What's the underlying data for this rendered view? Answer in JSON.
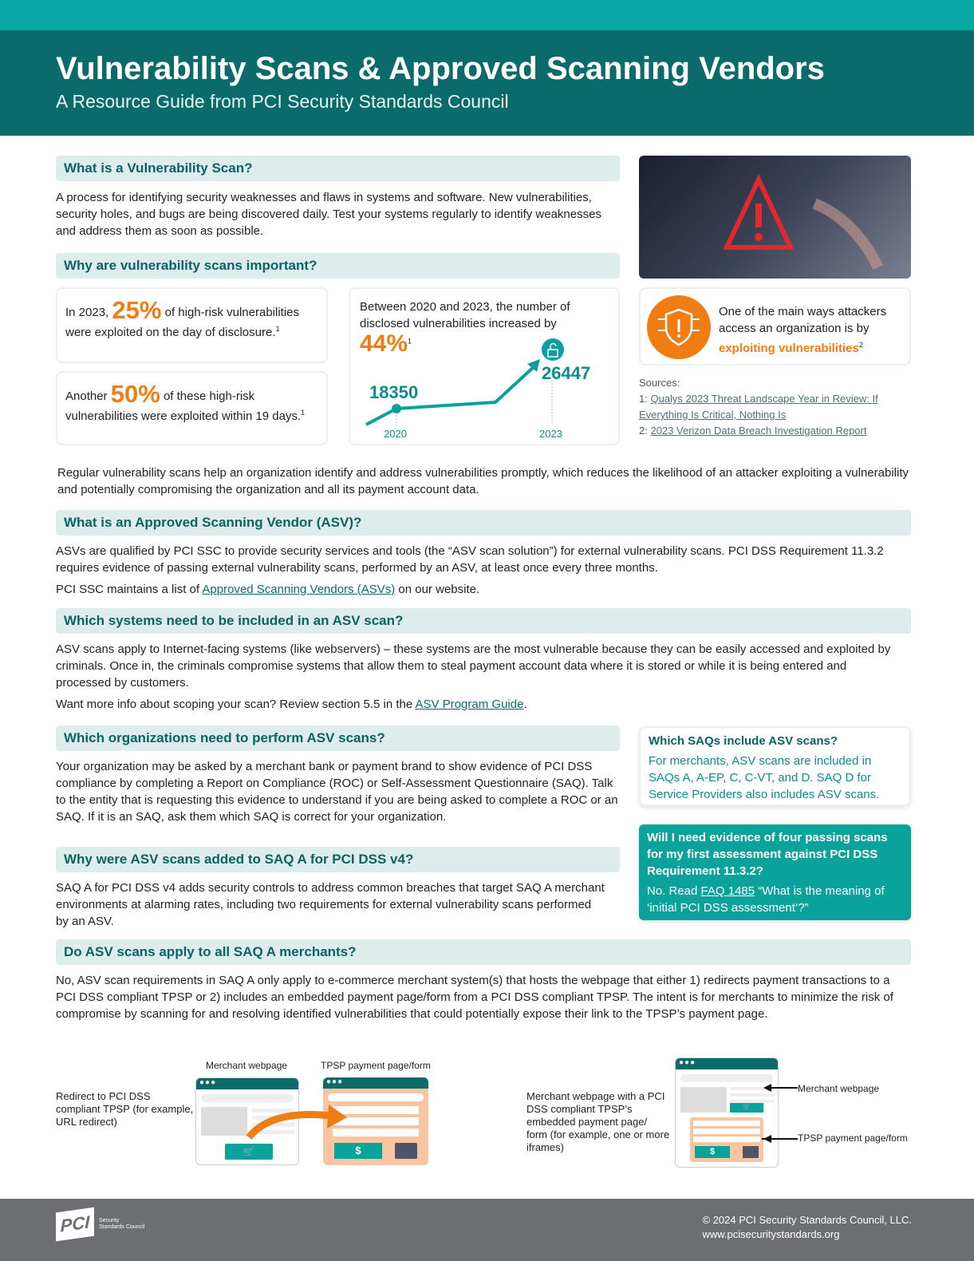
{
  "header": {
    "title": "Vulnerability Scans & Approved Scanning Vendors",
    "subtitle": "A Resource Guide from PCI Security Standards Council"
  },
  "s1": {
    "heading": "What is a Vulnerability Scan?",
    "body": "A process for identifying security weaknesses and flaws in systems and software. New vulnerabilities, security holes, and bugs are being discovered daily. Test your systems regularly to identify weaknesses and address them as soon as possible."
  },
  "s2": {
    "heading": "Why are vulnerability scans important?",
    "stat1": {
      "pre": "In 2023,",
      "value": "25%",
      "post": "of high-risk vulnerabilities were exploited on the day of disclosure.",
      "sup": "1"
    },
    "stat2": {
      "pre": "Another",
      "value": "50%",
      "post": "of these high-risk vulnerabilities were exploited within 19 days.",
      "sup": "1"
    },
    "chart_text": "Between 2020 and 2023, the number of disclosed vulnerabilities increased by",
    "chart_value": "44%",
    "chart_sup": "1",
    "attack_pre": "One of the main ways attackers access an organization is by",
    "attack_em": "exploiting vulnerabilities",
    "attack_sup": "2",
    "sources_label": "Sources:",
    "sources": [
      {
        "num": "1:",
        "text": "Qualys 2023 Threat Landscape Year in Review: If Everything Is Critical, Nothing Is"
      },
      {
        "num": "2:",
        "text": "2023 Verizon Data Breach Investigation Report"
      }
    ],
    "summary": "Regular vulnerability scans help an organization identify and address vulnerabilities promptly, which reduces the likelihood of an attacker exploiting a vulnerability and potentially compromising the organization and all its payment account data."
  },
  "chart_data": {
    "type": "line",
    "x": [
      "2020",
      "2023"
    ],
    "values": [
      18350,
      26447
    ],
    "labels": [
      "18350",
      "26447"
    ]
  },
  "s3": {
    "heading": "What is an Approved Scanning Vendor (ASV)?",
    "body": "ASVs are qualified by PCI SSC to provide security services and tools (the “ASV scan solution”) for external vulnerability scans. PCI DSS Requirement 11.3.2 requires evidence of passing external vulnerability scans, performed by an ASV, at least once every three months.",
    "list_pre": "PCI SSC maintains a list of",
    "list_link": "Approved Scanning Vendors (ASVs)",
    "list_post": "on our website."
  },
  "s4": {
    "heading": "Which systems need to be included in an ASV scan?",
    "body": "ASV scans apply to Internet-facing systems (like webservers) – these systems are the most vulnerable because they can be easily accessed and exploited by criminals. Once in, the criminals compromise systems that allow them to steal payment account data where it is stored or while it is being entered and processed by customers.",
    "more_pre": "Want more info about scoping your scan? Review section 5.5 in the",
    "more_link": "ASV Program Guide",
    "more_post": "."
  },
  "s5": {
    "heading": "Which organizations need to perform ASV scans?",
    "body": "Your organization may be asked by a merchant bank or payment brand to show evidence of PCI DSS compliance by completing a Report on Compliance (ROC) or Self-Assessment Questionnaire (SAQ). Talk to the entity that is requesting this evidence to understand if you are being asked to complete a ROC or an SAQ. If it is an SAQ, ask them which SAQ is correct for your organization."
  },
  "saq_box": {
    "heading": "Which SAQs include ASV scans?",
    "body": "For merchants, ASV scans are included in SAQs A, A-EP, C, C-VT, and D. SAQ D for Service Providers also includes ASV scans."
  },
  "faq_box": {
    "heading": "Will I need evidence of four passing scans for my first assessment against PCI DSS Requirement 11.3.2?",
    "pre": "No. Read",
    "link": "FAQ 1485",
    "post": "“What is the meaning of ‘initial PCI DSS assessment’?”"
  },
  "s6": {
    "heading": "Why were ASV scans added to SAQ A for PCI DSS v4?",
    "body": "SAQ A for PCI DSS v4 adds security controls to address common breaches that target SAQ A merchant environments at alarming rates, including two requirements for external vulnerability scans performed by an ASV."
  },
  "s7": {
    "heading": "Do ASV scans apply to all SAQ A merchants?",
    "body": "No, ASV scan requirements in SAQ A only apply to e-commerce merchant system(s) that hosts the webpage that either 1) redirects payment transactions to a PCI DSS compliant TPSP or 2) includes an embedded payment page/form from a PCI DSS compliant TPSP. The intent is for merchants to minimize the risk of compromise by scanning for and resolving identified vulnerabilities that could potentially expose their link to the TPSP’s payment page."
  },
  "diagram": {
    "left_caption": "Redirect to PCI DSS compliant TPSP (for example, URL redirect)",
    "merchant_label": "Merchant webpage",
    "tpsp_label": "TPSP payment page/form",
    "right_caption": "Merchant webpage with a PCI DSS compliant TPSP’s embedded payment page/ form (for example, one or more iframes)",
    "dots": "●●●",
    "dollar": "$"
  },
  "footer": {
    "logo": "PCI Security Standards Council",
    "copyright": "© 2024 PCI Security Standards Council, LLC.",
    "url": "www.pcisecuritystandards.org"
  },
  "colors": {
    "teal_dark": "#0b6b6b",
    "teal": "#0aa5a5",
    "orange": "#f07d13",
    "footer": "#6d6e71"
  }
}
